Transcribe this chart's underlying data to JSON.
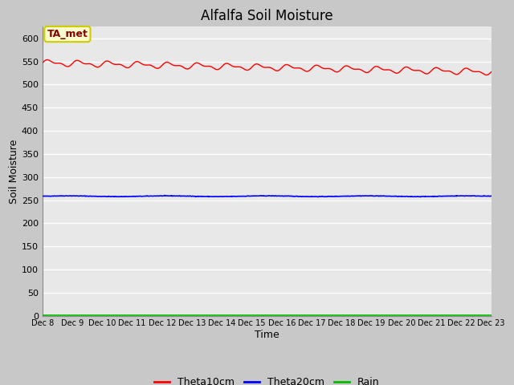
{
  "title": "Alfalfa Soil Moisture",
  "xlabel": "Time",
  "ylabel": "Soil Moisture",
  "ylim": [
    0,
    625
  ],
  "yticks": [
    0,
    50,
    100,
    150,
    200,
    250,
    300,
    350,
    400,
    450,
    500,
    550,
    600
  ],
  "x_labels": [
    "Dec 8",
    "Dec 9",
    "Dec 10",
    "Dec 11",
    "Dec 12",
    "Dec 13",
    "Dec 14",
    "Dec 15",
    "Dec 16",
    "Dec 17",
    "Dec 18",
    "Dec 19",
    "Dec 20",
    "Dec 21",
    "Dec 22",
    "Dec 23"
  ],
  "annotation_text": "TA_met",
  "annotation_bg": "#ffffcc",
  "annotation_border": "#cccc00",
  "theta10_color": "#ff0000",
  "theta20_color": "#0000ff",
  "rain_color": "#00bb00",
  "figure_bg": "#c8c8c8",
  "plot_bg": "#e8e8e8",
  "grid_color": "#ffffff",
  "title_fontsize": 12,
  "axis_label_fontsize": 9,
  "tick_fontsize": 8
}
